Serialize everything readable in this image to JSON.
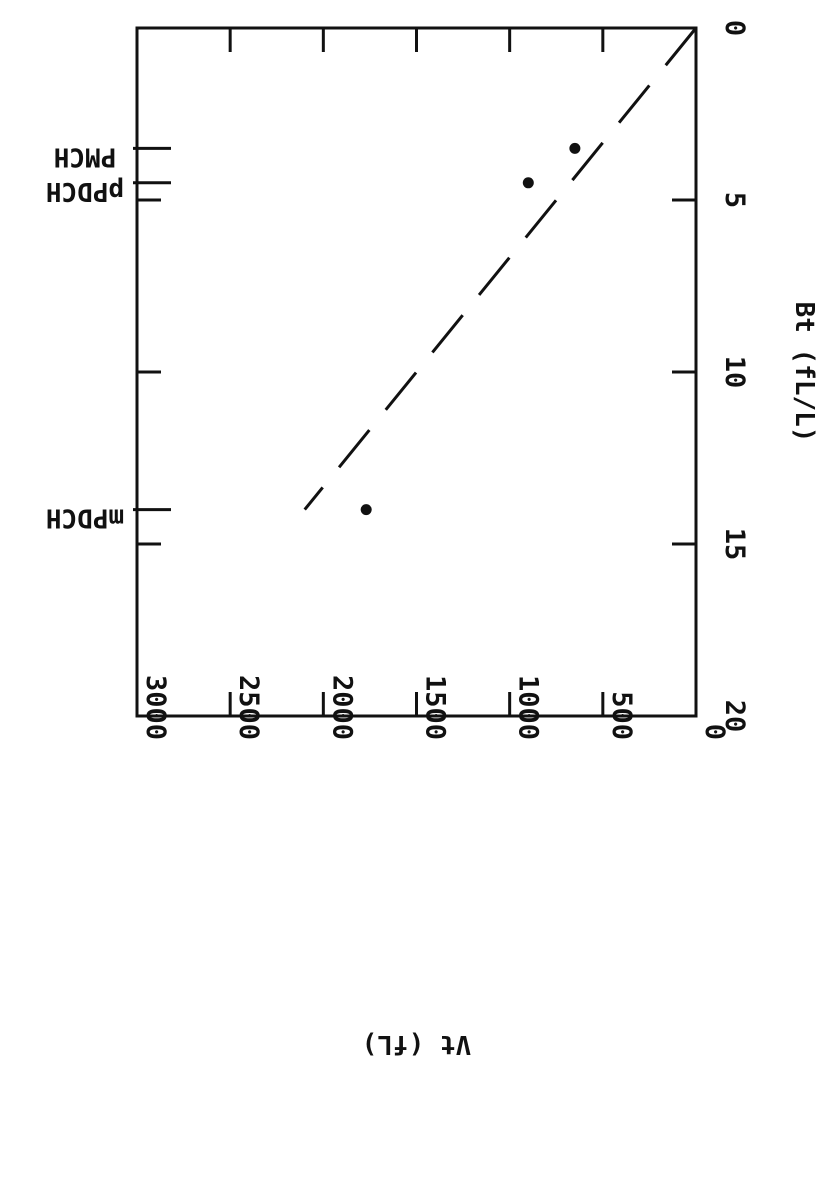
{
  "chart_data": {
    "type": "scatter",
    "orientation": "rotated 90 degrees clockwise",
    "xlabel": "Bt (fL/L)",
    "ylabel": "Vt (fL)",
    "xlim": [
      0,
      20
    ],
    "ylim": [
      0,
      3000
    ],
    "x_ticks": [
      0,
      5,
      10,
      15,
      20
    ],
    "y_ticks": [
      0,
      500,
      1000,
      1500,
      2000,
      2500,
      3000
    ],
    "x_tick_labels": [
      "0",
      "5",
      "10",
      "15",
      "20"
    ],
    "y_tick_labels": [
      "0",
      "500",
      "1000",
      "1500",
      "2000",
      "2500",
      "3000"
    ],
    "grid": false,
    "series": [
      {
        "kind": "points",
        "x": [
          3.5,
          4.5,
          14.0
        ],
        "y": [
          650,
          900,
          1770
        ]
      },
      {
        "kind": "dashed-line",
        "x": [
          0,
          14
        ],
        "y": [
          0,
          2100
        ]
      }
    ],
    "annotations": [
      {
        "label": "PMCH",
        "x": 3.5
      },
      {
        "label": "pPDCH",
        "x": 4.5
      },
      {
        "label": "mPDCH",
        "x": 14.0
      }
    ],
    "colors": {
      "ink": "#111111",
      "background": "#ffffff"
    }
  }
}
